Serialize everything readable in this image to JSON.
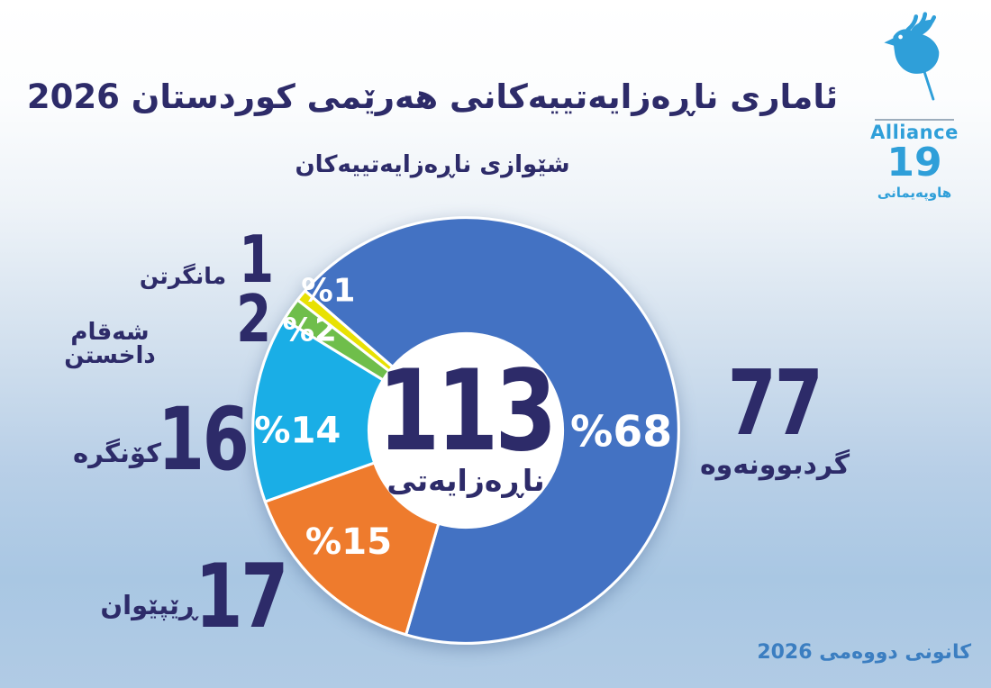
{
  "header": {
    "title": "ئاماری ناڕەزایەتییەکانی هەرێمی کوردستان 2026",
    "subtitle": "شێوازی ناڕەزایەتییەکان"
  },
  "logo": {
    "org_en": "Alliance",
    "org_number": "19",
    "org_ku": "هاوپەیمانی",
    "color": "#2f9fd9"
  },
  "footer": {
    "date_label": "کانونی دووەمی 2026"
  },
  "colors": {
    "navy_text": "#2d2b69",
    "footer_blue": "#3b7ec1",
    "background_bottom": "#a9c7e3"
  },
  "chart_data": {
    "type": "pie",
    "donut": true,
    "title": "شێوازی ناڕەزایەتییەکان",
    "total": 113,
    "center_label": "ناڕەزایەتی",
    "start_angle": 311,
    "legend_position": "around",
    "slices": [
      {
        "name": "گردبوونەوە",
        "value": 77,
        "pct": 68,
        "pct_label": "%68",
        "color": "#4372c3"
      },
      {
        "name": "ڕێپێوان",
        "value": 17,
        "pct": 15,
        "pct_label": "%15",
        "color": "#ee7b2d"
      },
      {
        "name": "کۆنگرە",
        "value": 16,
        "pct": 14,
        "pct_label": "%14",
        "color": "#1aaee6"
      },
      {
        "name": "شەقام داخستن",
        "value": 2,
        "pct": 2,
        "pct_label": "%2",
        "color": "#6fbe4b"
      },
      {
        "name": "مانگرتن",
        "value": 1,
        "pct": 1,
        "pct_label": "%1",
        "color": "#e8e103"
      }
    ]
  }
}
